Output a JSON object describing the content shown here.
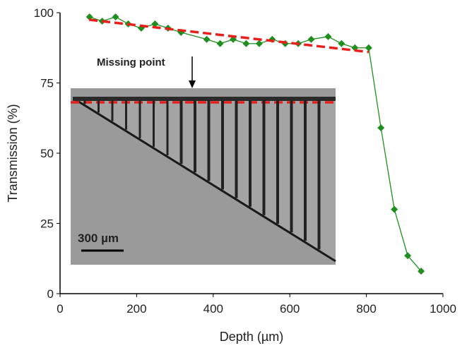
{
  "chart_data": {
    "type": "line",
    "x_label": "Depth (µm)",
    "y_label": "Transmission (%)",
    "x": [
      77,
      110,
      145,
      178,
      212,
      248,
      282,
      316,
      383,
      418,
      452,
      486,
      520,
      554,
      588,
      622,
      656,
      700,
      735,
      770,
      806,
      838,
      873,
      908,
      943
    ],
    "series": [
      {
        "color": "#1f8f1f",
        "values": [
          98.5,
          97,
          98.5,
          96,
          94.5,
          96,
          94.5,
          93,
          90.5,
          89,
          90.5,
          89,
          89,
          90.5,
          89,
          89,
          90.5,
          91.5,
          89,
          87.5,
          87.5,
          59,
          30,
          13.5,
          8
        ]
      }
    ],
    "fit_line": {
      "x": [
        76,
        806
      ],
      "values": [
        97.5,
        86
      ],
      "color": "#e8201c"
    },
    "xlim": [
      0,
      1000
    ],
    "xticks": [
      0,
      200,
      400,
      600,
      800,
      1000
    ],
    "ylim": [
      0,
      100
    ],
    "yticks": [
      0,
      25,
      50,
      75,
      100
    ],
    "annotations": {
      "missing": "Missing point",
      "scale_bar": "300 µm"
    }
  }
}
